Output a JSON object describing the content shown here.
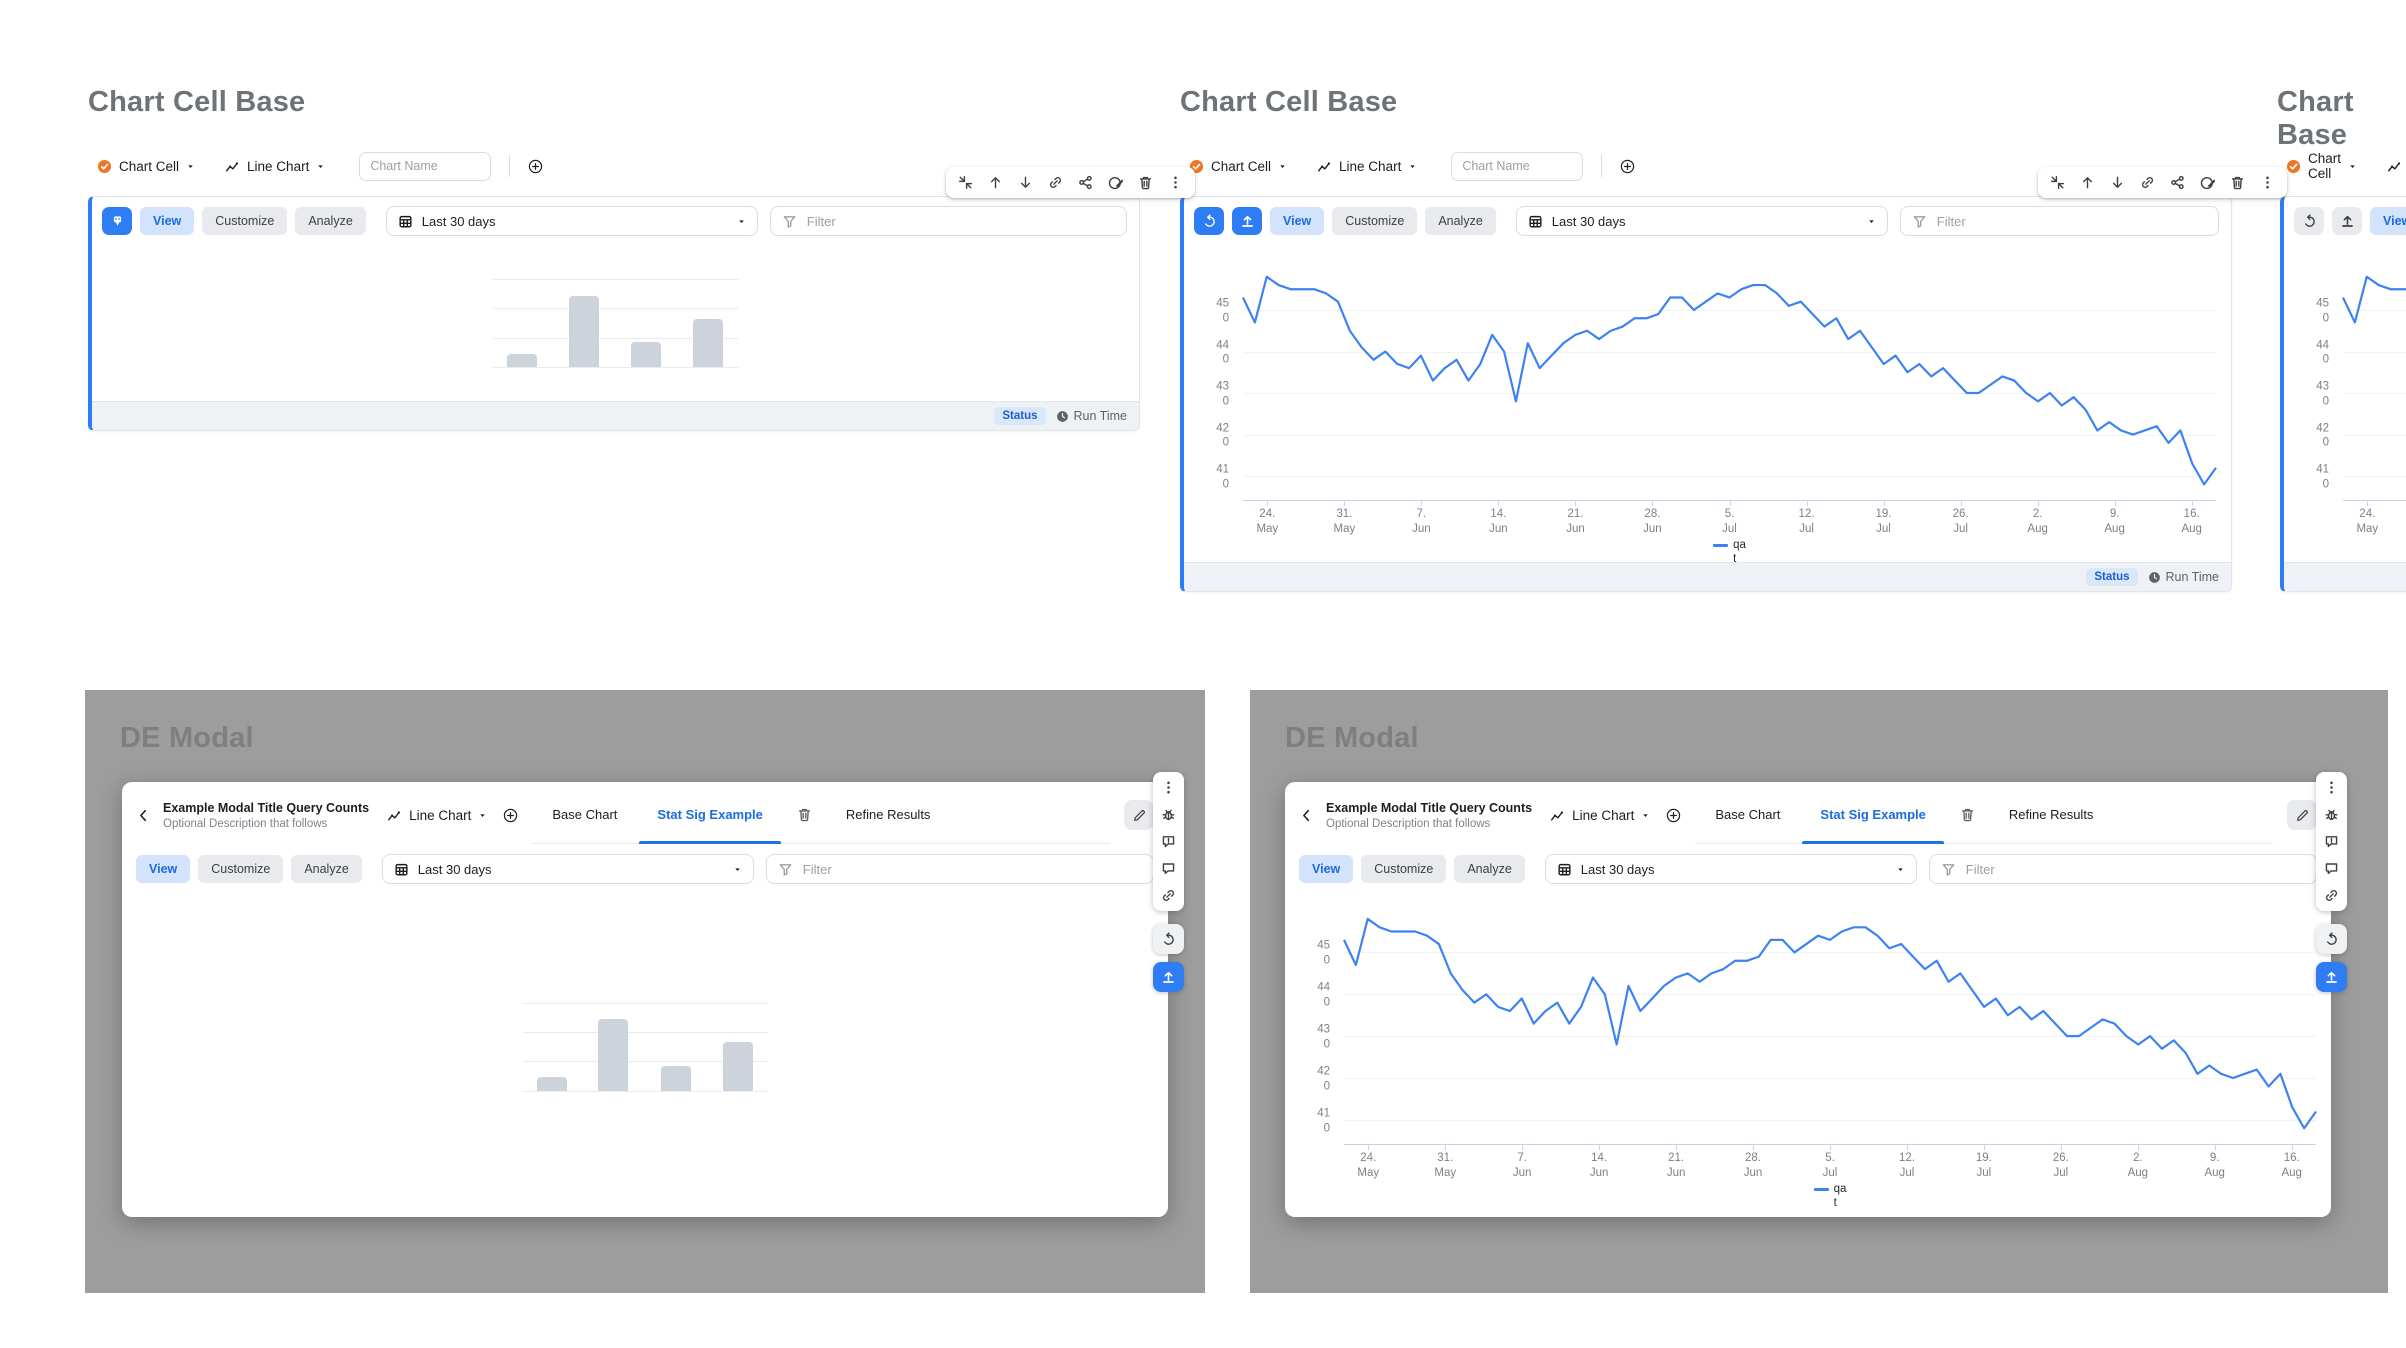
{
  "headings": {
    "chart_cell_base": "Chart Cell Base",
    "chart_base": "Chart Base",
    "de_modal": "DE Modal"
  },
  "config_row": {
    "source": "Chart Cell",
    "chart_type": "Line Chart",
    "name_placeholder": "Chart Name"
  },
  "toolbar": {
    "view": "View",
    "customize": "Customize",
    "analyze": "Analyze",
    "date_range": "Last 30 days",
    "filter_placeholder": "Filter"
  },
  "footer": {
    "status": "Status",
    "run_time": "Run Time"
  },
  "modal": {
    "title": "Example Modal Title Query Counts",
    "description": "Optional Description that follows",
    "chart_type": "Line Chart",
    "tab_base": "Base Chart",
    "tab_stat": "Stat Sig Example",
    "tab_refine": "Refine Results",
    "active_tab": "Stat Sig Example"
  },
  "colors": {
    "accent_blue": "#2f7df5",
    "view_bg": "#d3e3fb",
    "view_text": "#1a6ce0",
    "line_color": "#3d82f2",
    "status_bg": "#d9e7f9",
    "status_text": "#1b5fcc",
    "check_orange": "#ee7624",
    "section_gray": "#9d9d9d",
    "placeholder_bar": "#cdd3db"
  },
  "placeholder_chart": {
    "type": "bar",
    "values_pct": [
      15,
      81,
      28,
      55
    ],
    "gridlines": 4
  },
  "chart_data": {
    "type": "line",
    "title": "",
    "xlabel": "",
    "ylabel": "",
    "grid": true,
    "legend_position": "bottom",
    "x_ticks": [
      "24. May",
      "31. May",
      "7. Jun",
      "14. Jun",
      "21. Jun",
      "28. Jun",
      "5. Jul",
      "12. Jul",
      "19. Jul",
      "26. Jul",
      "2. Aug",
      "9. Aug",
      "16. Aug"
    ],
    "y_ticks": [
      450,
      440,
      430,
      420,
      410
    ],
    "ylim": [
      404,
      463
    ],
    "series": [
      {
        "name": "qat",
        "color": "#3d82f2",
        "values": [
          453,
          447,
          458,
          456,
          455,
          455,
          455,
          454,
          452,
          445,
          441,
          438,
          440,
          437,
          436,
          439,
          433,
          436,
          438,
          433,
          437,
          444,
          440,
          428,
          442,
          436,
          439,
          442,
          444,
          445,
          443,
          445,
          446,
          448,
          448,
          449,
          453,
          453,
          450,
          452,
          454,
          453,
          455,
          456,
          456,
          454,
          451,
          452,
          449,
          446,
          448,
          443,
          445,
          441,
          437,
          439,
          435,
          437,
          434,
          436,
          433,
          430,
          430,
          432,
          434,
          433,
          430,
          428,
          430,
          427,
          429,
          426,
          421,
          423,
          421,
          420,
          421,
          422,
          418,
          421,
          413,
          408,
          412
        ]
      }
    ]
  }
}
